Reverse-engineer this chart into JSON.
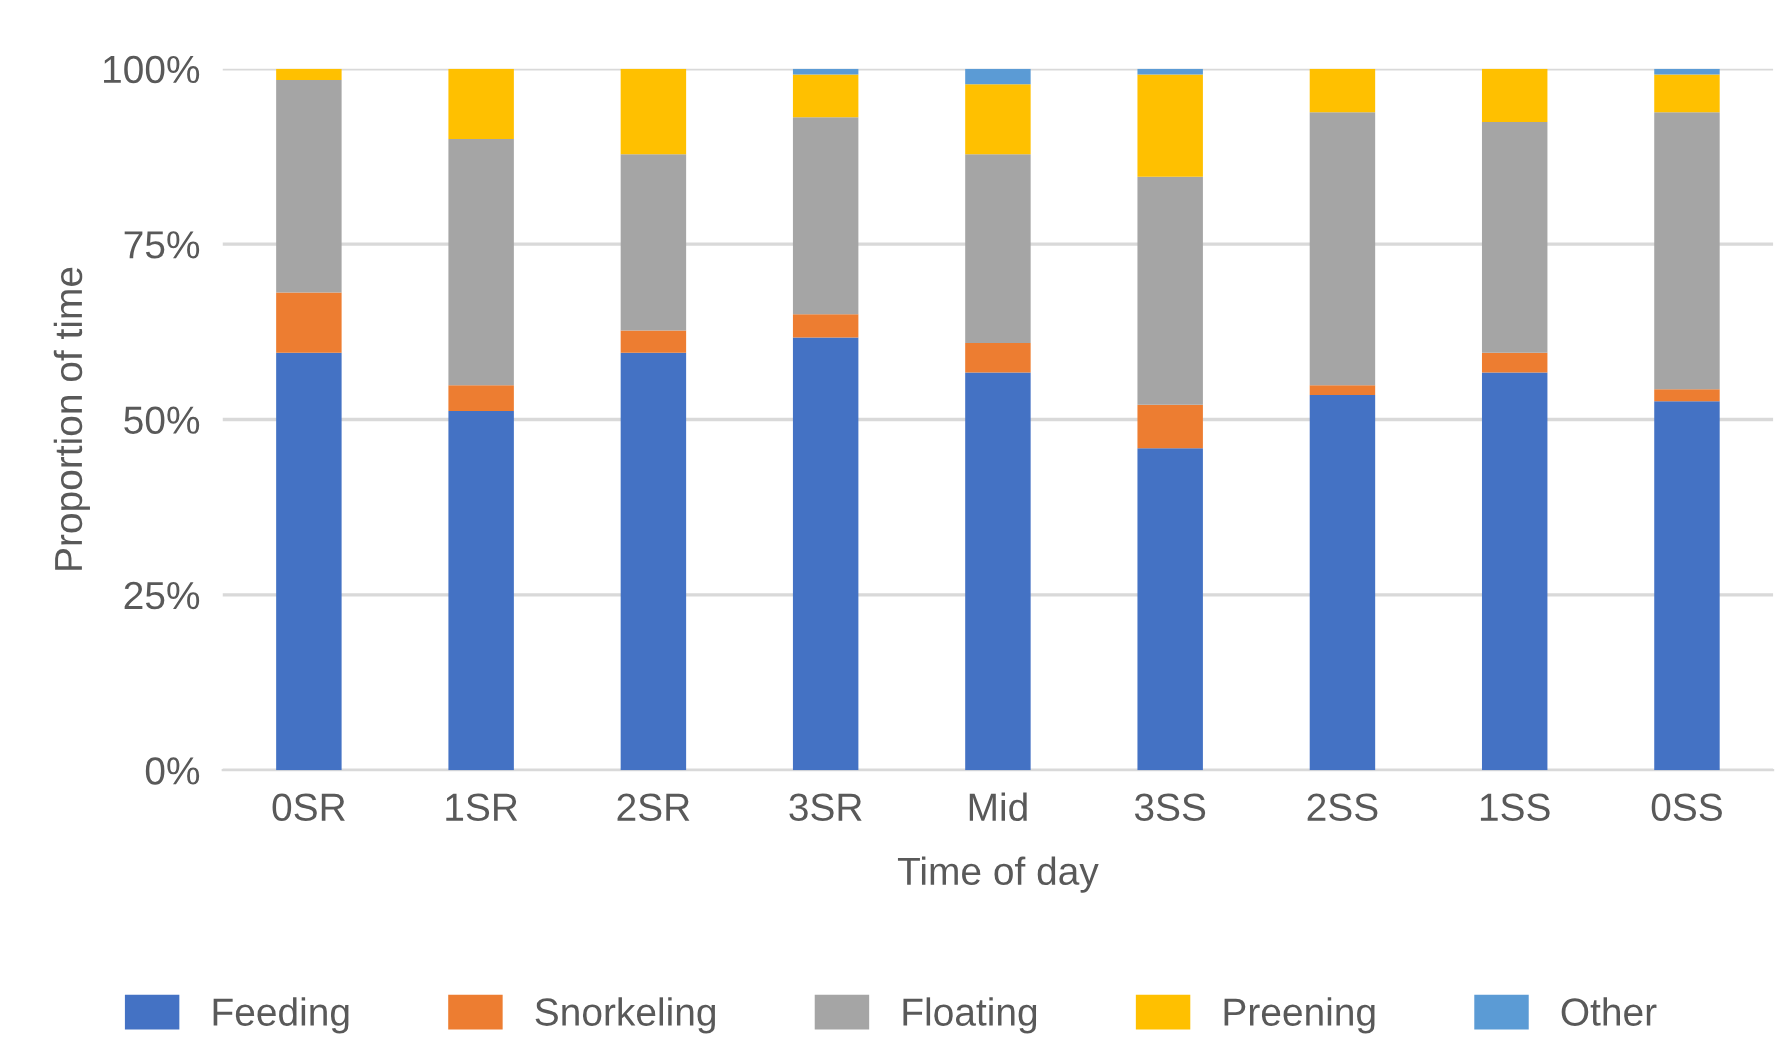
{
  "chart_data": {
    "type": "bar",
    "stacked": true,
    "xlabel": "Time of day",
    "ylabel": "Proportion of time",
    "categories": [
      "0SR",
      "1SR",
      "2SR",
      "3SR",
      "Mid",
      "3SS",
      "2SS",
      "1SS",
      "0SS"
    ],
    "series": [
      {
        "name": "Feeding",
        "color": "#4472c4",
        "values": [
          59.5,
          51.2,
          59.5,
          61.7,
          56.7,
          45.9,
          53.5,
          56.7,
          52.6
        ]
      },
      {
        "name": "Snorkeling",
        "color": "#ed7d31",
        "values": [
          8.6,
          3.7,
          3.2,
          3.3,
          4.2,
          6.2,
          1.4,
          2.8,
          1.7
        ]
      },
      {
        "name": "Floating",
        "color": "#a5a5a5",
        "values": [
          30.3,
          35.1,
          25.1,
          28.1,
          26.9,
          32.5,
          38.9,
          32.9,
          39.5
        ]
      },
      {
        "name": "Preening",
        "color": "#ffc000",
        "values": [
          1.6,
          10.0,
          12.2,
          6.1,
          10.0,
          14.6,
          6.2,
          7.6,
          5.4
        ]
      },
      {
        "name": "Other",
        "color": "#5b9bd5",
        "values": [
          0,
          0,
          0,
          0.8,
          2.2,
          0.8,
          0,
          0,
          0.8
        ]
      }
    ],
    "ylim": [
      0,
      100
    ],
    "yticks": [
      {
        "value": 0,
        "label": "0%"
      },
      {
        "value": 25,
        "label": "25%"
      },
      {
        "value": 50,
        "label": "50%"
      },
      {
        "value": 75,
        "label": "75%"
      },
      {
        "value": 100,
        "label": "100%"
      }
    ],
    "grid": "y",
    "legend": "bottom"
  }
}
